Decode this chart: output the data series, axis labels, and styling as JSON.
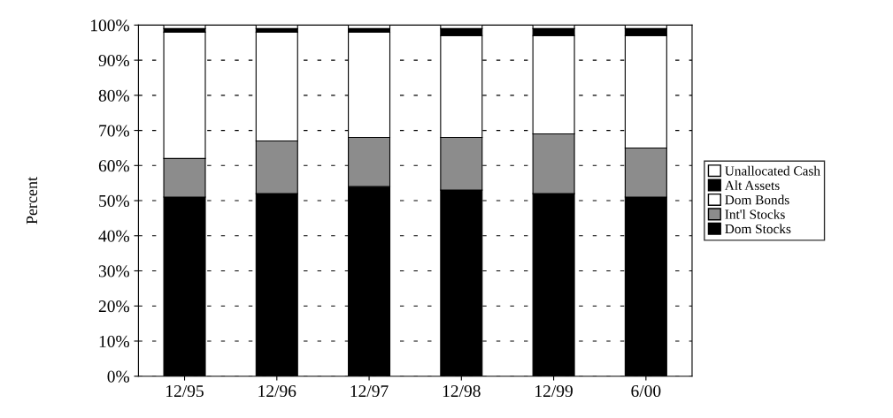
{
  "chart_data": {
    "type": "bar",
    "stacked": true,
    "ylabel": "Percent",
    "categories": [
      "12/95",
      "12/96",
      "12/97",
      "12/98",
      "12/99",
      "6/00"
    ],
    "series": [
      {
        "name": "Dom Stocks",
        "color": "#000000",
        "values": [
          51,
          52,
          54,
          53,
          52,
          51
        ]
      },
      {
        "name": "Int'l Stocks",
        "color": "#8c8c8c",
        "values": [
          11,
          15,
          14,
          15,
          17,
          14
        ]
      },
      {
        "name": "Dom Bonds",
        "color": "#ffffff",
        "values": [
          36,
          31,
          30,
          29,
          28,
          32
        ]
      },
      {
        "name": "Alt Assets",
        "color": "#000000",
        "values": [
          1,
          1,
          1,
          2,
          2,
          2
        ]
      },
      {
        "name": "Unallocated Cash",
        "color": "#ffffff",
        "values": [
          1,
          1,
          1,
          1,
          1,
          1
        ]
      }
    ],
    "ylim": [
      0,
      100
    ],
    "yticks": [
      {
        "value": 0,
        "label": "0%"
      },
      {
        "value": 10,
        "label": "10%"
      },
      {
        "value": 20,
        "label": "20%"
      },
      {
        "value": 30,
        "label": "30%"
      },
      {
        "value": 40,
        "label": "40%"
      },
      {
        "value": 50,
        "label": "50%"
      },
      {
        "value": 60,
        "label": "60%"
      },
      {
        "value": 70,
        "label": "70%"
      },
      {
        "value": 80,
        "label": "80%"
      },
      {
        "value": 90,
        "label": "90%"
      },
      {
        "value": 100,
        "label": "100%"
      }
    ],
    "grid": "y",
    "legend": "right"
  }
}
